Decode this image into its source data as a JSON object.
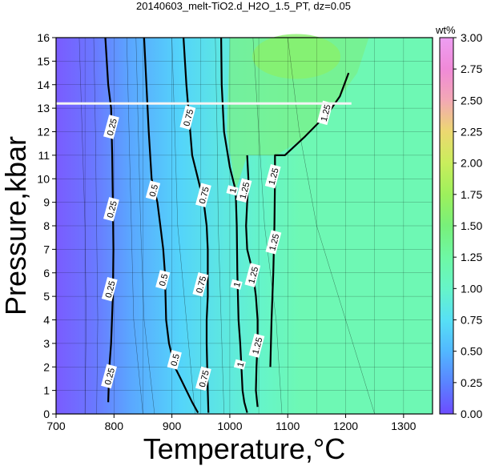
{
  "chart_data": {
    "type": "heatmap",
    "title": "20140603_melt-TiO2.d_H2O_1.5_PT, dz=0.05",
    "xlabel": "Temperature,°C",
    "ylabel": "Pressure,kbar",
    "xlim": [
      700,
      1350
    ],
    "ylim": [
      0,
      16
    ],
    "x_ticks": [
      "700",
      "800",
      "900",
      "1000",
      "1100",
      "1200",
      "1300"
    ],
    "y_ticks": [
      "0",
      "1",
      "2",
      "3",
      "4",
      "5",
      "6",
      "7",
      "8",
      "9",
      "10",
      "11",
      "12",
      "13",
      "14",
      "15",
      "16"
    ],
    "grid": true,
    "colorbar": {
      "label": "wt%",
      "range": [
        0,
        3
      ],
      "ticks": [
        "0.00",
        "0.25",
        "0.50",
        "0.75",
        "1.00",
        "1.25",
        "1.50",
        "1.75",
        "2.00",
        "2.25",
        "2.50",
        "2.75",
        "3.00"
      ],
      "colors": [
        "#6c4cff",
        "#5a83ff",
        "#52b8ff",
        "#57e0f5",
        "#66f5c8",
        "#6ef8a4",
        "#78f07a",
        "#9df05c",
        "#c9ee5c",
        "#ecd870",
        "#f3a8b4",
        "#f08ad8",
        "#ee9ef2"
      ]
    },
    "contours": [
      {
        "level": "0.25",
        "points": [
          [
            785,
            16
          ],
          [
            790,
            14
          ],
          [
            795,
            13
          ],
          [
            797,
            11
          ],
          [
            798,
            9
          ],
          [
            799,
            7
          ],
          [
            798,
            5
          ],
          [
            795,
            3
          ],
          [
            792,
            2
          ],
          [
            790,
            0.5
          ]
        ],
        "labels": [
          {
            "text": "0.25",
            "x": 796,
            "y": 12.2
          },
          {
            "text": "0.25",
            "x": 796,
            "y": 8.7
          },
          {
            "text": "0.25",
            "x": 793,
            "y": 5.3
          },
          {
            "text": "0.25",
            "x": 792,
            "y": 1.6
          }
        ]
      },
      {
        "level": "0.5",
        "points": [
          [
            852,
            16
          ],
          [
            856,
            14
          ],
          [
            860,
            12
          ],
          [
            865,
            10
          ],
          [
            875,
            9
          ],
          [
            880,
            8
          ],
          [
            885,
            7
          ],
          [
            888,
            6
          ],
          [
            890,
            4
          ],
          [
            895,
            3
          ],
          [
            905,
            2
          ],
          [
            915,
            1.5
          ],
          [
            925,
            1
          ],
          [
            935,
            0.5
          ],
          [
            945,
            0.05
          ]
        ],
        "labels": [
          {
            "text": "0.5",
            "x": 868,
            "y": 9.5
          },
          {
            "text": "0.5",
            "x": 885,
            "y": 5.7
          },
          {
            "text": "0.5",
            "x": 905,
            "y": 2.3
          }
        ]
      },
      {
        "level": "0.75",
        "points": [
          [
            920,
            16
          ],
          [
            925,
            14
          ],
          [
            930,
            12.5
          ],
          [
            935,
            11
          ],
          [
            945,
            10
          ],
          [
            955,
            9
          ],
          [
            960,
            8
          ],
          [
            962,
            7
          ],
          [
            962,
            5
          ],
          [
            960,
            4
          ],
          [
            960,
            3
          ],
          [
            961,
            2
          ],
          [
            962,
            1
          ],
          [
            963,
            0.05
          ]
        ],
        "labels": [
          {
            "text": "0.75",
            "x": 928,
            "y": 12.6
          },
          {
            "text": "0.75",
            "x": 955,
            "y": 9.3
          },
          {
            "text": "0.75",
            "x": 950,
            "y": 5.5
          },
          {
            "text": "0.75",
            "x": 955,
            "y": 1.5
          }
        ]
      },
      {
        "level": "1",
        "points": [
          [
            985,
            16
          ],
          [
            986,
            14
          ],
          [
            990,
            12
          ],
          [
            1000,
            10.5
          ],
          [
            1010,
            9.5
          ],
          [
            1012,
            8
          ],
          [
            1013,
            6
          ],
          [
            1015,
            4
          ],
          [
            1018,
            3
          ],
          [
            1020,
            2
          ],
          [
            1022,
            1
          ],
          [
            1025,
            0.5
          ],
          [
            1030,
            0.05
          ]
        ],
        "labels": [
          {
            "text": "1",
            "x": 1005,
            "y": 9.5
          },
          {
            "text": "1",
            "x": 1012,
            "y": 5.5
          },
          {
            "text": "1",
            "x": 1018,
            "y": 2.1
          }
        ]
      },
      {
        "level": "1.25",
        "points": [
          [
            1030,
            11
          ],
          [
            1032,
            10
          ],
          [
            1030,
            9
          ],
          [
            1028,
            8
          ],
          [
            1030,
            7
          ],
          [
            1040,
            6
          ],
          [
            1045,
            5
          ],
          [
            1048,
            4
          ],
          [
            1048,
            3
          ],
          [
            1046,
            2
          ],
          [
            1045,
            1
          ],
          [
            1048,
            0.3
          ]
        ],
        "labels": [
          {
            "text": "1.25",
            "x": 1025,
            "y": 9.5
          },
          {
            "text": "1.25",
            "x": 1040,
            "y": 5.9
          },
          {
            "text": "1.25",
            "x": 1047,
            "y": 2.9
          }
        ]
      },
      {
        "level": "1.25",
        "points": [
          [
            1070,
            2
          ],
          [
            1072,
            4
          ],
          [
            1075,
            6
          ],
          [
            1077,
            8
          ],
          [
            1078,
            10
          ],
          [
            1078,
            11
          ],
          [
            1095,
            11
          ],
          [
            1130,
            11.8
          ],
          [
            1170,
            12.8
          ],
          [
            1190,
            13.5
          ],
          [
            1205,
            14.5
          ]
        ],
        "labels": [
          {
            "text": "1.25",
            "x": 1075,
            "y": 10.1
          },
          {
            "text": "1.25",
            "x": 1076,
            "y": 7.3
          },
          {
            "text": "1.25",
            "x": 1165,
            "y": 12.8
          }
        ]
      }
    ],
    "white_line": {
      "y": 13.2,
      "x": [
        700,
        1210
      ]
    }
  }
}
